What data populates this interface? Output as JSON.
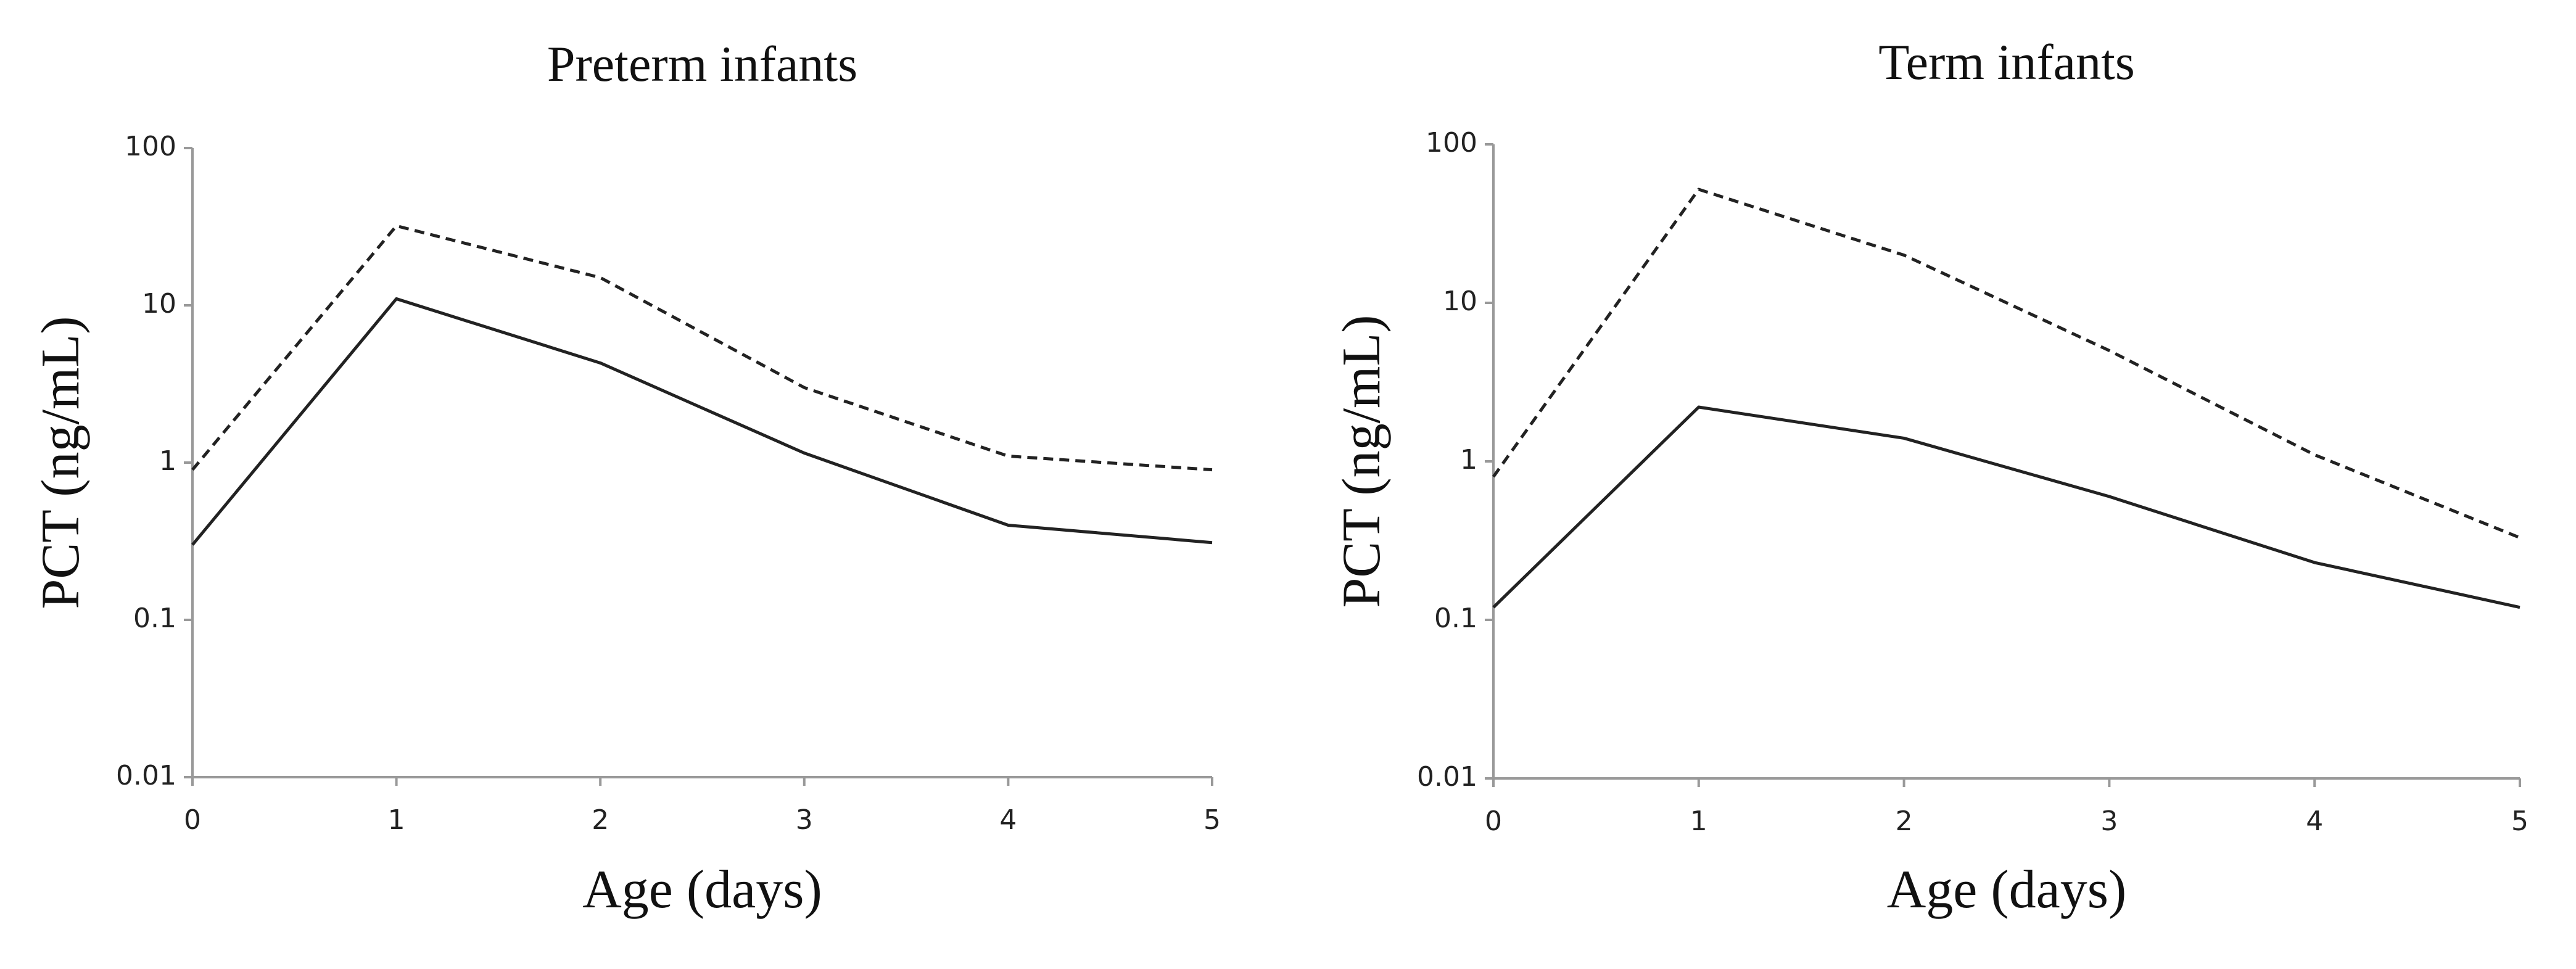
{
  "chart_data": [
    {
      "type": "line",
      "title": "Preterm infants",
      "x_label": "Age (days)",
      "y_label": "PCT (ng/mL)",
      "x": [
        0,
        1,
        2,
        3,
        4,
        5
      ],
      "series": [
        {
          "color": "#222222",
          "linestyle": "solid",
          "values": [
            0.3,
            11,
            4.3,
            1.15,
            0.4,
            0.31
          ]
        },
        {
          "color": "#222222",
          "linestyle": "dashed",
          "values": [
            0.9,
            32,
            15,
            3,
            1.1,
            0.9
          ]
        }
      ],
      "xlim": [
        0,
        5
      ],
      "xticks": [
        0,
        1,
        2,
        3,
        4,
        5
      ],
      "ylim": [
        0.01,
        100
      ],
      "yticks": [
        0.01,
        0.1,
        1,
        10,
        100
      ],
      "y_scale": "log",
      "grid": false
    },
    {
      "type": "line",
      "title": "Term infants",
      "x_label": "Age (days)",
      "y_label": "PCT (ng/mL)",
      "x": [
        0,
        1,
        2,
        3,
        4,
        5
      ],
      "series": [
        {
          "color": "#222222",
          "linestyle": "solid",
          "values": [
            0.12,
            2.2,
            1.4,
            0.6,
            0.23,
            0.12
          ]
        },
        {
          "color": "#222222",
          "linestyle": "dashed",
          "values": [
            0.8,
            52,
            20,
            5,
            1.1,
            0.33
          ]
        }
      ],
      "xlim": [
        0,
        5
      ],
      "xticks": [
        0,
        1,
        2,
        3,
        4,
        5
      ],
      "ylim": [
        0.01,
        100
      ],
      "yticks": [
        0.01,
        0.1,
        1,
        10,
        100
      ],
      "y_scale": "log",
      "grid": false
    }
  ]
}
